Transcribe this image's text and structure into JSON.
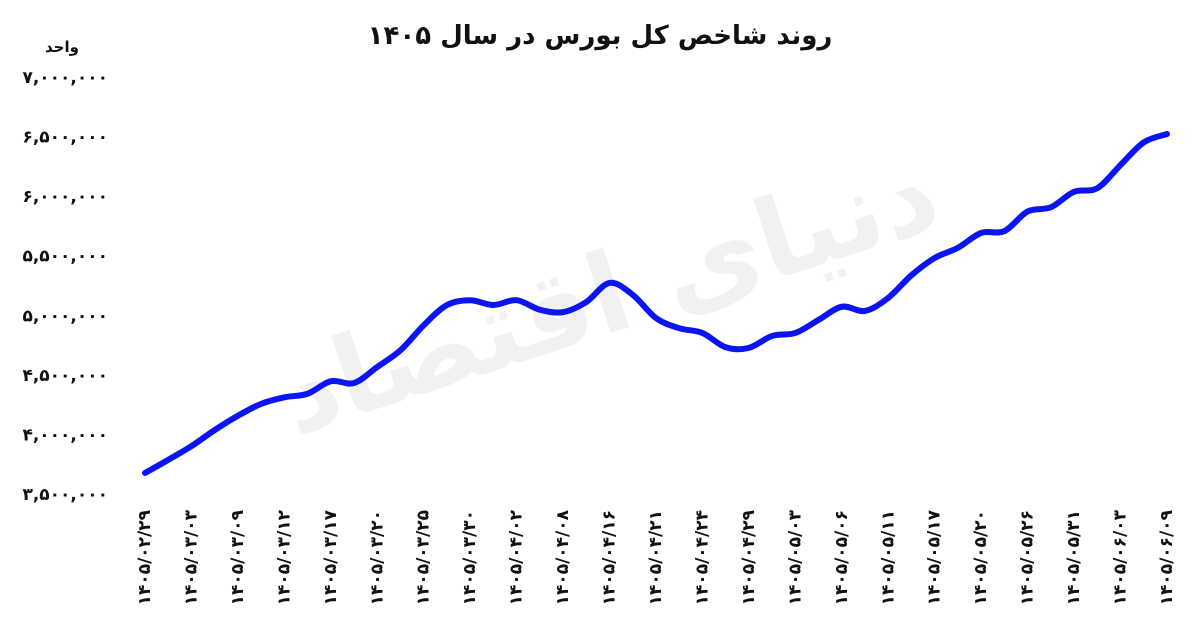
{
  "chart_data": {
    "type": "line",
    "title": "روند شاخص کل بورس در سال ۱۴۰۵",
    "y_label": "واحد",
    "watermark": "دنیای اقتصاد",
    "categories": [
      "۱۴۰۵/۰۲/۲۹",
      null,
      "۱۴۰۵/۰۳/۰۳",
      null,
      "۱۴۰۵/۰۳/۰۹",
      null,
      "۱۴۰۵/۰۳/۱۲",
      null,
      "۱۴۰۵/۰۳/۱۷",
      null,
      "۱۴۰۵/۰۳/۲۰",
      null,
      "۱۴۰۵/۰۳/۲۵",
      null,
      "۱۴۰۵/۰۳/۳۰",
      null,
      "۱۴۰۵/۰۴/۰۲",
      null,
      "۱۴۰۵/۰۴/۰۸",
      null,
      "۱۴۰۵/۰۴/۱۶",
      null,
      "۱۴۰۵/۰۴/۲۱",
      null,
      "۱۴۰۵/۰۴/۲۴",
      null,
      "۱۴۰۵/۰۴/۲۹",
      null,
      "۱۴۰۵/۰۵/۰۳",
      null,
      "۱۴۰۵/۰۵/۰۶",
      null,
      "۱۴۰۵/۰۵/۱۱",
      null,
      "۱۴۰۵/۰۵/۱۷",
      null,
      "۱۴۰۵/۰۵/۲۰",
      null,
      "۱۴۰۵/۰۵/۲۶",
      null,
      "۱۴۰۵/۰۵/۳۱",
      null,
      "۱۴۰۵/۰۶/۰۳",
      null,
      "۱۴۰۵/۰۶/۰۹"
    ],
    "values": [
      3685000,
      3795000,
      3910000,
      4045000,
      4165000,
      4265000,
      4320000,
      4350000,
      4455000,
      4440000,
      4575000,
      4715000,
      4925000,
      5095000,
      5135000,
      5095000,
      5135000,
      5055000,
      5035000,
      5120000,
      5280000,
      5180000,
      4985000,
      4900000,
      4860000,
      4740000,
      4735000,
      4835000,
      4860000,
      4970000,
      5080000,
      5045000,
      5155000,
      5345000,
      5490000,
      5575000,
      5700000,
      5715000,
      5880000,
      5915000,
      6045000,
      6075000,
      6270000,
      6460000,
      6530000
    ],
    "color": "#0a14f5",
    "ylim": [
      3500000,
      7000000
    ],
    "yticks": [
      {
        "value": 3500000,
        "label": "۳,۵۰۰,۰۰۰"
      },
      {
        "value": 4000000,
        "label": "۴,۰۰۰,۰۰۰"
      },
      {
        "value": 4500000,
        "label": "۴,۵۰۰,۰۰۰"
      },
      {
        "value": 5000000,
        "label": "۵,۰۰۰,۰۰۰"
      },
      {
        "value": 5500000,
        "label": "۵,۵۰۰,۰۰۰"
      },
      {
        "value": 6000000,
        "label": "۶,۰۰۰,۰۰۰"
      },
      {
        "value": 6500000,
        "label": "۶,۵۰۰,۰۰۰"
      },
      {
        "value": 7000000,
        "label": "۷,۰۰۰,۰۰۰"
      }
    ]
  }
}
